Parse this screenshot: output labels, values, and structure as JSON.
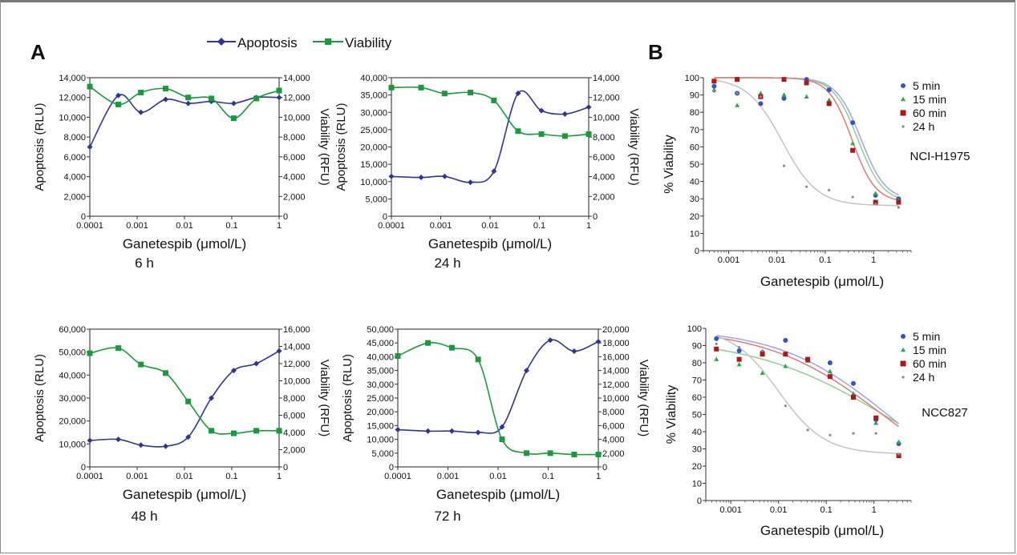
{
  "panel_labels": [
    "A",
    "B"
  ],
  "legend_a": [
    {
      "name": "Apoptosis",
      "color": "#2e3592"
    },
    {
      "name": "Viability",
      "color": "#1a9a3c"
    }
  ],
  "colors": {
    "apoptosis": "#2e3592",
    "viability": "#1a9a3c",
    "5min": "#3354c9",
    "15min": "#2ea44f",
    "60min": "#b01818",
    "24h": "#8a8a8a"
  },
  "chart_data": [
    {
      "id": "a6h",
      "type": "line",
      "caption": "6 h",
      "xlabel": "Ganetespib (μmol/L)",
      "ylabel": "Apoptosis (RLU)",
      "y2label": "Viability (RFU)",
      "xscale": "log",
      "xlim": [
        0.0001,
        1
      ],
      "xticks": [
        0.0001,
        0.001,
        0.01,
        0.1,
        1
      ],
      "xticklabels": [
        "0.0001",
        "0.001",
        "0.01",
        "0.1",
        "1"
      ],
      "ylim": [
        0,
        14000
      ],
      "yticks": [
        0,
        2000,
        4000,
        6000,
        8000,
        10000,
        12000,
        14000
      ],
      "yticklabels": [
        "0",
        "2,000",
        "4,000",
        "6,000",
        "8,000",
        "10,000",
        "12,000",
        "14,000"
      ],
      "y2lim": [
        0,
        14000
      ],
      "y2ticks": [
        0,
        2000,
        4000,
        6000,
        8000,
        10000,
        12000,
        14000
      ],
      "y2ticklabels": [
        "0",
        "2,000",
        "4,000",
        "6,000",
        "8,000",
        "10,000",
        "12,000",
        "14,000"
      ],
      "x": [
        0.0001,
        0.0004,
        0.0012,
        0.004,
        0.012,
        0.037,
        0.11,
        0.33,
        1
      ],
      "series": [
        {
          "name": "Apoptosis",
          "axis": "left",
          "values": [
            7000,
            12200,
            10500,
            11800,
            11400,
            11600,
            11400,
            12000,
            12000
          ]
        },
        {
          "name": "Viability",
          "axis": "right",
          "values": [
            13100,
            11300,
            12500,
            12900,
            12000,
            11900,
            9900,
            11900,
            12700
          ]
        }
      ]
    },
    {
      "id": "a24h",
      "type": "line",
      "caption": "24 h",
      "xlabel": "Ganetespib (μmol/L)",
      "ylabel": "Apoptosis (RLU)",
      "y2label": "Viability (RFU)",
      "xscale": "log",
      "xlim": [
        0.0001,
        1
      ],
      "xticks": [
        0.0001,
        0.001,
        0.01,
        0.1,
        1
      ],
      "xticklabels": [
        "0.0001",
        "0.001",
        "0.01",
        "0.1",
        "1"
      ],
      "ylim": [
        0,
        40000
      ],
      "yticks": [
        0,
        5000,
        10000,
        15000,
        20000,
        25000,
        30000,
        35000,
        40000
      ],
      "yticklabels": [
        "0",
        "5,000",
        "10,000",
        "15,000",
        "20,000",
        "25,000",
        "30,000",
        "35,000",
        "40,000"
      ],
      "y2lim": [
        0,
        14000
      ],
      "y2ticks": [
        0,
        2000,
        4000,
        6000,
        8000,
        10000,
        12000,
        14000
      ],
      "y2ticklabels": [
        "0",
        "2,000",
        "4,000",
        "6,000",
        "8,000",
        "10,000",
        "12,000",
        "14,000"
      ],
      "x": [
        0.0001,
        0.0004,
        0.0012,
        0.004,
        0.012,
        0.037,
        0.11,
        0.33,
        1
      ],
      "series": [
        {
          "name": "Apoptosis",
          "axis": "left",
          "values": [
            11500,
            11200,
            11500,
            9800,
            13000,
            35500,
            30500,
            29500,
            31500
          ]
        },
        {
          "name": "Viability",
          "axis": "right",
          "values": [
            13000,
            13000,
            12400,
            12500,
            11700,
            8600,
            8300,
            8100,
            8300
          ]
        }
      ]
    },
    {
      "id": "a48h",
      "type": "line",
      "caption": "48 h",
      "xlabel": "Ganetespib (μmol/L)",
      "ylabel": "Apoptosis (RLU)",
      "y2label": "Viability (RFU)",
      "xscale": "log",
      "xlim": [
        0.0001,
        1
      ],
      "xticks": [
        0.0001,
        0.001,
        0.01,
        0.1,
        1
      ],
      "xticklabels": [
        "0.0001",
        "0.001",
        "0.01",
        "0.1",
        "1"
      ],
      "ylim": [
        0,
        60000
      ],
      "yticks": [
        0,
        10000,
        20000,
        30000,
        40000,
        50000,
        60000
      ],
      "yticklabels": [
        "0",
        "10,000",
        "20,000",
        "30,000",
        "40,000",
        "50,000",
        "60,000"
      ],
      "y2lim": [
        0,
        16000
      ],
      "y2ticks": [
        0,
        2000,
        4000,
        6000,
        8000,
        10000,
        12000,
        14000,
        16000
      ],
      "y2ticklabels": [
        "0",
        "2,000",
        "4,000",
        "6,000",
        "8,000",
        "10,000",
        "12,000",
        "14,000",
        "16,000"
      ],
      "x": [
        0.0001,
        0.0004,
        0.0012,
        0.004,
        0.012,
        0.037,
        0.11,
        0.33,
        1
      ],
      "series": [
        {
          "name": "Apoptosis",
          "axis": "left",
          "values": [
            11500,
            12000,
            9500,
            9000,
            13000,
            30000,
            42000,
            45000,
            50500
          ]
        },
        {
          "name": "Viability",
          "axis": "right",
          "values": [
            13200,
            13800,
            11900,
            10900,
            7600,
            4200,
            3900,
            4200,
            4200
          ]
        }
      ]
    },
    {
      "id": "a72h",
      "type": "line",
      "caption": "72 h",
      "xlabel": "Ganetespib (μmol/L)",
      "ylabel": "Apoptosis (RLU)",
      "y2label": "Viability (RFU)",
      "xscale": "log",
      "xlim": [
        0.0001,
        1
      ],
      "xticks": [
        0.0001,
        0.001,
        0.01,
        0.1,
        1
      ],
      "xticklabels": [
        "0.0001",
        "0.001",
        "0.01",
        "0.1",
        "1"
      ],
      "ylim": [
        0,
        50000
      ],
      "yticks": [
        0,
        5000,
        10000,
        15000,
        20000,
        25000,
        30000,
        35000,
        40000,
        45000,
        50000
      ],
      "yticklabels": [
        "0",
        "5,000",
        "10,000",
        "15,000",
        "20,000",
        "25,000",
        "30,000",
        "35,000",
        "40,000",
        "45,000",
        "50,000"
      ],
      "y2lim": [
        0,
        20000
      ],
      "y2ticks": [
        0,
        2000,
        4000,
        6000,
        8000,
        10000,
        12000,
        14000,
        16000,
        18000,
        20000
      ],
      "y2ticklabels": [
        "0",
        "2,000",
        "4,000",
        "6,000",
        "8,000",
        "10,000",
        "12,000",
        "14,000",
        "16,000",
        "18,000",
        "20,000"
      ],
      "x": [
        0.0001,
        0.0004,
        0.0012,
        0.004,
        0.012,
        0.037,
        0.11,
        0.33,
        1
      ],
      "series": [
        {
          "name": "Apoptosis",
          "axis": "left",
          "values": [
            13500,
            13000,
            13000,
            12500,
            14500,
            35000,
            46000,
            42000,
            45500
          ]
        },
        {
          "name": "Viability",
          "axis": "right",
          "values": [
            16100,
            18000,
            17300,
            15600,
            4000,
            2000,
            2000,
            1800,
            1800
          ]
        }
      ]
    },
    {
      "id": "b_h1975",
      "type": "scatter",
      "annotation": "NCI-H1975",
      "xlabel": "Ganetespib (μmol/L)",
      "ylabel": "% Viability",
      "xscale": "log",
      "xlim": [
        0.0003,
        6
      ],
      "xticks": [
        0.001,
        0.01,
        0.1,
        1
      ],
      "xticklabels": [
        "0.001",
        "0.01",
        "0.1",
        "1"
      ],
      "ylim": [
        0,
        100
      ],
      "yticks": [
        0,
        10,
        20,
        30,
        40,
        50,
        60,
        70,
        80,
        90,
        100
      ],
      "yticklabels": [
        "0",
        "10",
        "20",
        "30",
        "40",
        "50",
        "60",
        "70",
        "80",
        "90",
        "100"
      ],
      "legend_position": "top-right",
      "x": [
        0.0005,
        0.0015,
        0.0046,
        0.014,
        0.041,
        0.12,
        0.37,
        1.1,
        3.3
      ],
      "series": [
        {
          "name": "5 min",
          "marker": "circle",
          "values": [
            95,
            91,
            85,
            88,
            99,
            93,
            74,
            32,
            30
          ],
          "fit": {
            "top": 100,
            "bottom": 29,
            "ec50": 0.55,
            "hill": 1.7
          }
        },
        {
          "name": "15 min",
          "marker": "triangle",
          "values": [
            93,
            84,
            91,
            90,
            89,
            87,
            62,
            33,
            29
          ],
          "fit": {
            "top": 100,
            "bottom": 28,
            "ec50": 0.48,
            "hill": 1.7
          }
        },
        {
          "name": "60 min",
          "marker": "square",
          "values": [
            98,
            99,
            89,
            99,
            97,
            85,
            58,
            28,
            28
          ],
          "fit": {
            "top": 100,
            "bottom": 28,
            "ec50": 0.36,
            "hill": 1.8
          }
        },
        {
          "name": "24 h",
          "marker": "dot",
          "values": [
            92,
            91,
            89,
            49,
            37,
            35,
            31,
            27,
            25
          ],
          "fit": {
            "top": 100,
            "bottom": 26,
            "ec50": 0.013,
            "hill": 1.2
          }
        }
      ]
    },
    {
      "id": "b_ncc827",
      "type": "scatter",
      "annotation": "NCC827",
      "xlabel": "Ganetespib (μmol/L)",
      "ylabel": "% Viability",
      "xscale": "log",
      "xlim": [
        0.0003,
        6
      ],
      "xticks": [
        0.001,
        0.01,
        0.1,
        1
      ],
      "xticklabels": [
        "0.001",
        "0.01",
        "0.1",
        "1"
      ],
      "ylim": [
        0,
        100
      ],
      "yticks": [
        0,
        10,
        20,
        30,
        40,
        50,
        60,
        70,
        80,
        90,
        100
      ],
      "yticklabels": [
        "0",
        "10",
        "20",
        "30",
        "40",
        "50",
        "60",
        "70",
        "80",
        "90",
        "100"
      ],
      "legend_position": "top-right",
      "x": [
        0.0005,
        0.0015,
        0.0046,
        0.014,
        0.041,
        0.12,
        0.37,
        1.1,
        3.3
      ],
      "series": [
        {
          "name": "5 min",
          "marker": "circle",
          "values": [
            94,
            87,
            86,
            93,
            82,
            80,
            68,
            47,
            33
          ],
          "fit": {
            "top": 100,
            "bottom": 0,
            "ec50": 1.9,
            "hill": 0.38
          }
        },
        {
          "name": "15 min",
          "marker": "triangle",
          "values": [
            82,
            79,
            74,
            78,
            81,
            75,
            62,
            45,
            34
          ],
          "fit": {
            "top": 95,
            "bottom": 0,
            "ec50": 2.2,
            "hill": 0.3
          }
        },
        {
          "name": "60 min",
          "marker": "square",
          "values": [
            88,
            82,
            85,
            85,
            82,
            72,
            60,
            48,
            26
          ],
          "fit": {
            "top": 100,
            "bottom": 0,
            "ec50": 1.5,
            "hill": 0.36
          }
        },
        {
          "name": "24 h",
          "marker": "dot",
          "values": [
            91,
            89,
            87,
            55,
            41,
            38,
            39,
            39,
            27
          ],
          "fit": {
            "top": 100,
            "bottom": 27,
            "ec50": 0.01,
            "hill": 0.9
          }
        }
      ]
    }
  ]
}
